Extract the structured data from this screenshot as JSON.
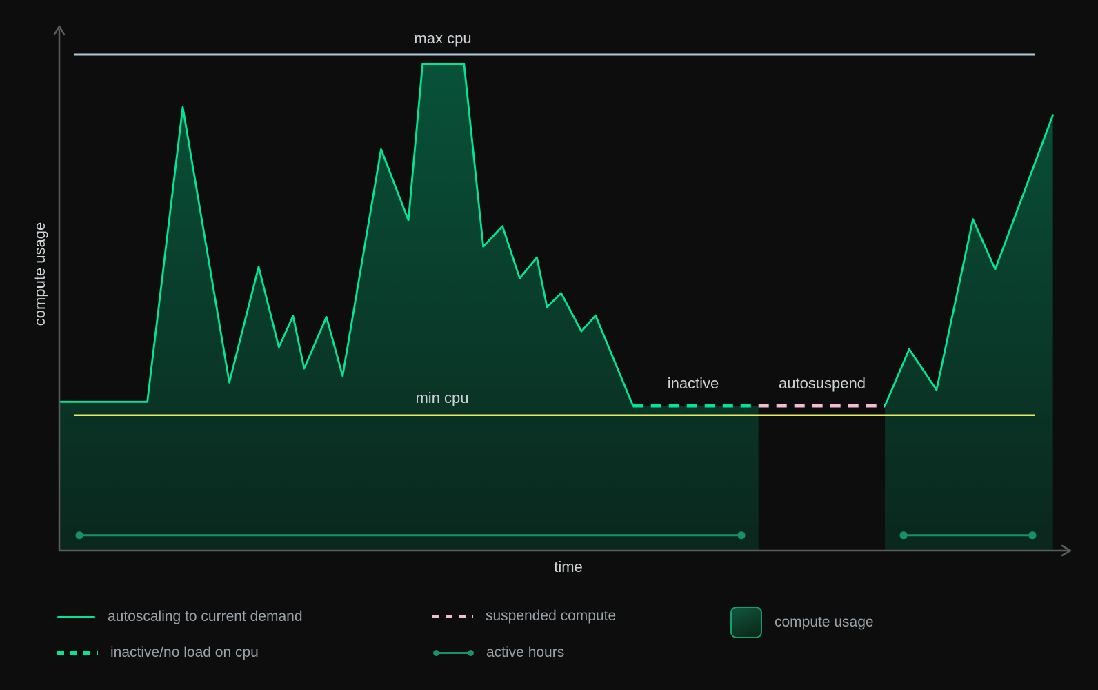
{
  "axes": {
    "y_label": "compute usage",
    "x_label": "time"
  },
  "annotations": {
    "max_cpu": "max cpu",
    "min_cpu": "min cpu",
    "inactive": "inactive",
    "autosuspend": "autosuspend"
  },
  "legend": {
    "position": "bottom",
    "items": [
      {
        "key": "autoscaling",
        "label": "autoscaling to current demand",
        "swatch": "solid-green-line"
      },
      {
        "key": "inactive",
        "label": "inactive/no load on cpu",
        "swatch": "dashed-green-line"
      },
      {
        "key": "suspended",
        "label": "suspended compute",
        "swatch": "dashed-pink-line"
      },
      {
        "key": "active-hours",
        "label": "active hours",
        "swatch": "green-line-with-end-dots"
      },
      {
        "key": "compute-usage",
        "label": "compute usage",
        "swatch": "green-area-box"
      }
    ]
  },
  "colors": {
    "background": "#0c0d0c",
    "autoscaling_line": "#00e599",
    "inactive_dash": "#00e599",
    "suspended_dash": "#f2bcd4",
    "max_cpu_line": "#aecbd7",
    "min_cpu_line": "#e6eb5f",
    "active_hours": "#17916a",
    "axis": "#585d5c",
    "label_text": "#ced3d6",
    "legend_text": "#9aa1a7",
    "area_fill_top": "rgba(0,229,153,0.32)",
    "area_fill_bottom": "rgba(0,229,153,0.12)",
    "area_box_border": "#12a06e",
    "area_box_top": "#11583f",
    "area_box_bottom": "#0b2315"
  },
  "chart_data": {
    "type": "area",
    "title": "compute autoscaling and autosuspend over time (conceptual, no numeric scale shown)",
    "xlabel": "time",
    "ylabel": "compute usage",
    "x_unit": "percent of timeline (axis unlabeled)",
    "y_unit": "fraction of max cpu (axis unlabeled)",
    "xlim": [
      0,
      100
    ],
    "ylim": [
      0,
      1.05
    ],
    "grid": false,
    "reference_lines": {
      "max_cpu": 1.0,
      "min_cpu": 0.273,
      "span": [
        1.43,
        96.45
      ]
    },
    "series": [
      {
        "name": "autoscaling to current demand",
        "style": "solid",
        "color": "autoscaling_line",
        "points": [
          [
            0,
            0.3
          ],
          [
            8.7,
            0.3
          ],
          [
            12.2,
            0.894
          ],
          [
            16.8,
            0.339
          ],
          [
            19.7,
            0.572
          ],
          [
            21.7,
            0.41
          ],
          [
            23.1,
            0.473
          ],
          [
            24.2,
            0.367
          ],
          [
            26.4,
            0.471
          ],
          [
            28.0,
            0.352
          ],
          [
            31.8,
            0.809
          ],
          [
            34.5,
            0.666
          ],
          [
            35.9,
            0.981
          ],
          [
            40.0,
            0.981
          ],
          [
            41.9,
            0.613
          ],
          [
            43.8,
            0.654
          ],
          [
            45.5,
            0.549
          ],
          [
            47.2,
            0.591
          ],
          [
            48.2,
            0.491
          ],
          [
            49.6,
            0.519
          ],
          [
            51.6,
            0.442
          ],
          [
            53.0,
            0.474
          ],
          [
            56.7,
            0.292
          ]
        ]
      },
      {
        "name": "inactive/no load on cpu",
        "style": "dashed",
        "color": "inactive_dash",
        "points": [
          [
            56.7,
            0.292
          ],
          [
            69.1,
            0.292
          ]
        ]
      },
      {
        "name": "suspended compute",
        "style": "dashed",
        "color": "suspended_dash",
        "points": [
          [
            69.1,
            0.292
          ],
          [
            81.6,
            0.292
          ]
        ]
      },
      {
        "name": "autoscaling to current demand (after resume)",
        "style": "solid",
        "color": "autoscaling_line",
        "points": [
          [
            81.6,
            0.292
          ],
          [
            84.0,
            0.406
          ],
          [
            86.7,
            0.324
          ],
          [
            90.3,
            0.668
          ],
          [
            92.5,
            0.567
          ],
          [
            98.2,
            0.878
          ]
        ]
      }
    ],
    "compute_usage_regions": [
      [
        0,
        69.1
      ],
      [
        81.6,
        98.2
      ]
    ],
    "active_hours_level": 0.031,
    "active_hours_segments": [
      [
        1.98,
        67.42
      ],
      [
        83.44,
        96.18
      ]
    ]
  }
}
